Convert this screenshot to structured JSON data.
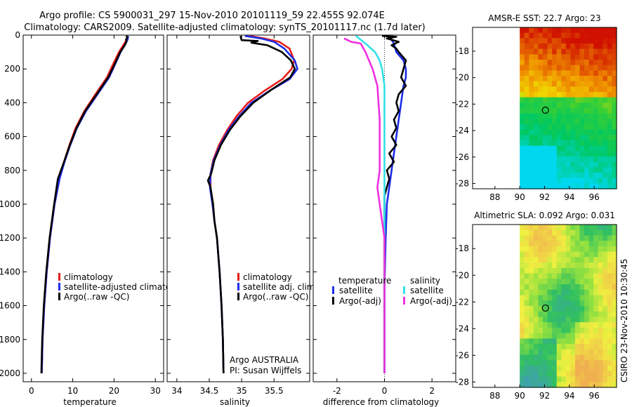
{
  "header": {
    "line1": "Argo profile: CS 5900031_297 15-Nov-2010 20101119_59 22.455S 92.074E",
    "line2": "Climatology: CARS2009. Satellite-adjusted climatology: synTS_20101117.nc (1.7d later)"
  },
  "colors": {
    "clim": "#e81c1c",
    "sat": "#1c2ce8",
    "argo": "#000000",
    "sal_sat": "#33e0e8",
    "sal_argo": "#f030e0"
  },
  "chart_data": [
    {
      "id": "temperature",
      "type": "line",
      "xlabel": "temperature",
      "ylabel": "",
      "xlim": [
        -2,
        32
      ],
      "ylim": [
        2050,
        0
      ],
      "xticks": [
        0,
        10,
        20,
        30
      ],
      "yticks": [
        0,
        200,
        400,
        600,
        800,
        1000,
        1200,
        1400,
        1600,
        1800,
        2000
      ],
      "legend": [
        "climatology",
        "satellite-adjusted climatology",
        "Argo(..raw -QC)"
      ],
      "series": [
        {
          "name": "climatology",
          "color_key": "clim",
          "points": [
            [
              23.2,
              5
            ],
            [
              23.1,
              25
            ],
            [
              22.5,
              50
            ],
            [
              21.2,
              100
            ],
            [
              19.6,
              180
            ],
            [
              18.3,
              250
            ],
            [
              15.5,
              350
            ],
            [
              12.8,
              450
            ],
            [
              10.7,
              550
            ],
            [
              9.2,
              650
            ],
            [
              7.9,
              750
            ],
            [
              6.8,
              850
            ],
            [
              5.6,
              1000
            ],
            [
              4.5,
              1200
            ],
            [
              3.7,
              1400
            ],
            [
              3.1,
              1600
            ],
            [
              2.7,
              1800
            ],
            [
              2.5,
              2000
            ]
          ]
        },
        {
          "name": "satellite-adjusted climatology",
          "color_key": "sat",
          "points": [
            [
              23.4,
              5
            ],
            [
              23.3,
              25
            ],
            [
              22.8,
              50
            ],
            [
              21.6,
              100
            ],
            [
              20.1,
              180
            ],
            [
              18.8,
              250
            ],
            [
              16.0,
              350
            ],
            [
              13.2,
              450
            ],
            [
              11.0,
              550
            ],
            [
              9.4,
              650
            ],
            [
              8.0,
              750
            ],
            [
              6.8,
              850
            ],
            [
              5.6,
              1000
            ],
            [
              4.5,
              1200
            ],
            [
              3.7,
              1400
            ],
            [
              3.1,
              1600
            ],
            [
              2.7,
              1800
            ],
            [
              2.5,
              2000
            ]
          ]
        },
        {
          "name": "Argo(..raw -QC)",
          "color_key": "argo",
          "points": [
            [
              22.9,
              5
            ],
            [
              23.3,
              12
            ],
            [
              22.9,
              25
            ],
            [
              23.0,
              40
            ],
            [
              22.6,
              60
            ],
            [
              21.5,
              100
            ],
            [
              20.0,
              180
            ],
            [
              18.6,
              250
            ],
            [
              15.8,
              350
            ],
            [
              13.0,
              450
            ],
            [
              10.9,
              550
            ],
            [
              9.3,
              650
            ],
            [
              7.9,
              750
            ],
            [
              6.4,
              850
            ],
            [
              5.5,
              1000
            ],
            [
              4.4,
              1200
            ],
            [
              3.6,
              1400
            ],
            [
              3.0,
              1600
            ],
            [
              2.6,
              1800
            ],
            [
              2.4,
              2000
            ]
          ]
        }
      ]
    },
    {
      "id": "salinity",
      "type": "line",
      "xlabel": "salinity",
      "ylabel": "",
      "xlim": [
        33.85,
        36.05
      ],
      "ylim": [
        2050,
        0
      ],
      "xticks": [
        34,
        34.5,
        35,
        35.5
      ],
      "yticks": [
        0,
        200,
        400,
        600,
        800,
        1000,
        1200,
        1400,
        1600,
        1800,
        2000
      ],
      "legend": [
        "climatology",
        "satellite adj. clim.",
        "Argo(..raw -QC)"
      ],
      "annotations": [
        "Argo AUSTRALIA",
        "PI: Susan Wijffels"
      ],
      "series": [
        {
          "name": "climatology",
          "color_key": "clim",
          "points": [
            [
              35.12,
              5
            ],
            [
              35.35,
              20
            ],
            [
              35.58,
              40
            ],
            [
              35.74,
              80
            ],
            [
              35.81,
              150
            ],
            [
              35.77,
              200
            ],
            [
              35.63,
              260
            ],
            [
              35.35,
              330
            ],
            [
              35.1,
              400
            ],
            [
              34.92,
              480
            ],
            [
              34.78,
              560
            ],
            [
              34.65,
              650
            ],
            [
              34.56,
              740
            ],
            [
              34.52,
              820
            ],
            [
              34.52,
              900
            ],
            [
              34.55,
              1000
            ],
            [
              34.58,
              1100
            ],
            [
              34.62,
              1200
            ],
            [
              34.66,
              1400
            ],
            [
              34.69,
              1600
            ],
            [
              34.71,
              1800
            ],
            [
              34.72,
              2000
            ]
          ]
        },
        {
          "name": "satellite adj. clim.",
          "color_key": "sat",
          "points": [
            [
              35.05,
              5
            ],
            [
              35.3,
              20
            ],
            [
              35.5,
              40
            ],
            [
              35.66,
              80
            ],
            [
              35.82,
              150
            ],
            [
              35.86,
              200
            ],
            [
              35.74,
              260
            ],
            [
              35.43,
              330
            ],
            [
              35.15,
              400
            ],
            [
              34.96,
              480
            ],
            [
              34.8,
              560
            ],
            [
              34.67,
              650
            ],
            [
              34.57,
              740
            ],
            [
              34.52,
              820
            ],
            [
              34.51,
              900
            ],
            [
              34.55,
              1000
            ],
            [
              34.58,
              1100
            ],
            [
              34.62,
              1200
            ],
            [
              34.66,
              1400
            ],
            [
              34.69,
              1600
            ],
            [
              34.71,
              1800
            ],
            [
              34.72,
              2000
            ]
          ]
        },
        {
          "name": "Argo(..raw -QC)",
          "color_key": "argo",
          "points": [
            [
              34.98,
              5
            ],
            [
              35.0,
              30
            ],
            [
              35.25,
              35
            ],
            [
              35.15,
              45
            ],
            [
              35.4,
              60
            ],
            [
              35.62,
              100
            ],
            [
              35.76,
              150
            ],
            [
              35.82,
              200
            ],
            [
              35.75,
              250
            ],
            [
              35.47,
              320
            ],
            [
              35.18,
              400
            ],
            [
              34.98,
              480
            ],
            [
              34.82,
              560
            ],
            [
              34.68,
              650
            ],
            [
              34.58,
              740
            ],
            [
              34.53,
              820
            ],
            [
              34.48,
              860
            ],
            [
              34.52,
              900
            ],
            [
              34.56,
              1000
            ],
            [
              34.58,
              1100
            ],
            [
              34.62,
              1200
            ],
            [
              34.66,
              1400
            ],
            [
              34.69,
              1600
            ],
            [
              34.71,
              1800
            ],
            [
              34.72,
              2000
            ]
          ]
        }
      ]
    },
    {
      "id": "difference",
      "type": "line",
      "xlabel": "difference from climatology",
      "ylabel": "",
      "xlim": [
        -3,
        3
      ],
      "ylim": [
        2050,
        0
      ],
      "xticks": [
        -2,
        0,
        2
      ],
      "yticks": [
        0,
        200,
        400,
        600,
        800,
        1000,
        1200,
        1400,
        1600,
        1800,
        2000
      ],
      "legend_groups": [
        {
          "title": "temperature",
          "items": [
            "satellite",
            "Argo(-adj)"
          ]
        },
        {
          "title": "salinity",
          "items": [
            "satellite",
            "Argo(-adj)"
          ]
        }
      ],
      "series": [
        {
          "name": "temperature satellite",
          "color_key": "sat",
          "points": [
            [
              0.2,
              5
            ],
            [
              0.4,
              50
            ],
            [
              0.5,
              100
            ],
            [
              0.8,
              150
            ],
            [
              0.9,
              200
            ],
            [
              0.9,
              250
            ],
            [
              0.8,
              300
            ],
            [
              0.7,
              400
            ],
            [
              0.6,
              500
            ],
            [
              0.5,
              600
            ],
            [
              0.4,
              700
            ],
            [
              0.3,
              800
            ],
            [
              0.2,
              900
            ],
            [
              0.1,
              1000
            ],
            [
              0.05,
              1200
            ],
            [
              0.0,
              1500
            ],
            [
              0.0,
              2000
            ]
          ]
        },
        {
          "name": "temperature Argo(-adj)",
          "color_key": "argo",
          "points": [
            [
              -0.1,
              5
            ],
            [
              0.5,
              10
            ],
            [
              0.1,
              20
            ],
            [
              0.6,
              40
            ],
            [
              0.3,
              60
            ],
            [
              0.5,
              80
            ],
            [
              0.6,
              100
            ],
            [
              0.9,
              150
            ],
            [
              0.8,
              200
            ],
            [
              0.7,
              250
            ],
            [
              0.9,
              300
            ],
            [
              0.6,
              350
            ],
            [
              0.5,
              400
            ],
            [
              0.6,
              450
            ],
            [
              0.4,
              500
            ],
            [
              0.5,
              550
            ],
            [
              0.3,
              600
            ],
            [
              0.5,
              650
            ],
            [
              0.2,
              700
            ],
            [
              0.4,
              750
            ],
            [
              0.1,
              800
            ],
            [
              0.2,
              850
            ],
            [
              0.0,
              950
            ],
            [
              0.0,
              1200
            ],
            [
              0.0,
              2000
            ]
          ]
        },
        {
          "name": "salinity satellite",
          "color_key": "sal_sat",
          "points": [
            [
              -1.2,
              5
            ],
            [
              -0.8,
              50
            ],
            [
              -0.4,
              100
            ],
            [
              -0.2,
              150
            ],
            [
              -0.1,
              200
            ],
            [
              0.0,
              300
            ],
            [
              0.0,
              2000
            ]
          ]
        },
        {
          "name": "salinity Argo(-adj)",
          "color_key": "sal_argo",
          "points": [
            [
              -1.7,
              20
            ],
            [
              -1.4,
              40
            ],
            [
              -1.0,
              50
            ],
            [
              -0.8,
              100
            ],
            [
              -0.5,
              200
            ],
            [
              -0.3,
              300
            ],
            [
              -0.2,
              500
            ],
            [
              -0.2,
              700
            ],
            [
              -0.2,
              800
            ],
            [
              -0.3,
              900
            ],
            [
              -0.2,
              1000
            ],
            [
              0.0,
              1200
            ],
            [
              0.0,
              2000
            ]
          ]
        }
      ]
    },
    {
      "id": "sst-map",
      "type": "heatmap",
      "title": "AMSR-E SST: 22.7 Argo: 23",
      "xlim": [
        86.2,
        97.8
      ],
      "ylim": [
        -28.4,
        -16.2
      ],
      "xticks": [
        88,
        90,
        92,
        94,
        96
      ],
      "yticks": [
        -18,
        -20,
        -22,
        -24,
        -26,
        -28
      ],
      "data_xlim": [
        90,
        97.8
      ],
      "color_stops": [
        [
          "#00d8f0",
          0
        ],
        [
          "#00c860",
          0.25
        ],
        [
          "#40d030",
          0.45
        ],
        [
          "#f0e000",
          0.62
        ],
        [
          "#f09000",
          0.78
        ],
        [
          "#d01000",
          1
        ]
      ],
      "marker": {
        "lon": 92.07,
        "lat": -22.46
      }
    },
    {
      "id": "sla-map",
      "type": "heatmap",
      "title": "Altimetric SLA: 0.092 Argo: 0.031",
      "xlim": [
        86.2,
        97.8
      ],
      "ylim": [
        -28.4,
        -16.2
      ],
      "xticks": [
        88,
        90,
        92,
        94,
        96
      ],
      "yticks": [
        -18,
        -20,
        -22,
        -24,
        -26,
        -28
      ],
      "data_xlim": [
        90,
        97.8
      ],
      "color_stops": [
        [
          "#40a0b0",
          0
        ],
        [
          "#30c060",
          0.3
        ],
        [
          "#90e040",
          0.5
        ],
        [
          "#f0f040",
          0.7
        ],
        [
          "#f0b050",
          1
        ]
      ],
      "marker": {
        "lon": 92.07,
        "lat": -22.46
      }
    }
  ],
  "side_stamp": "CSIRO 23-Nov-2010 10:30:45"
}
